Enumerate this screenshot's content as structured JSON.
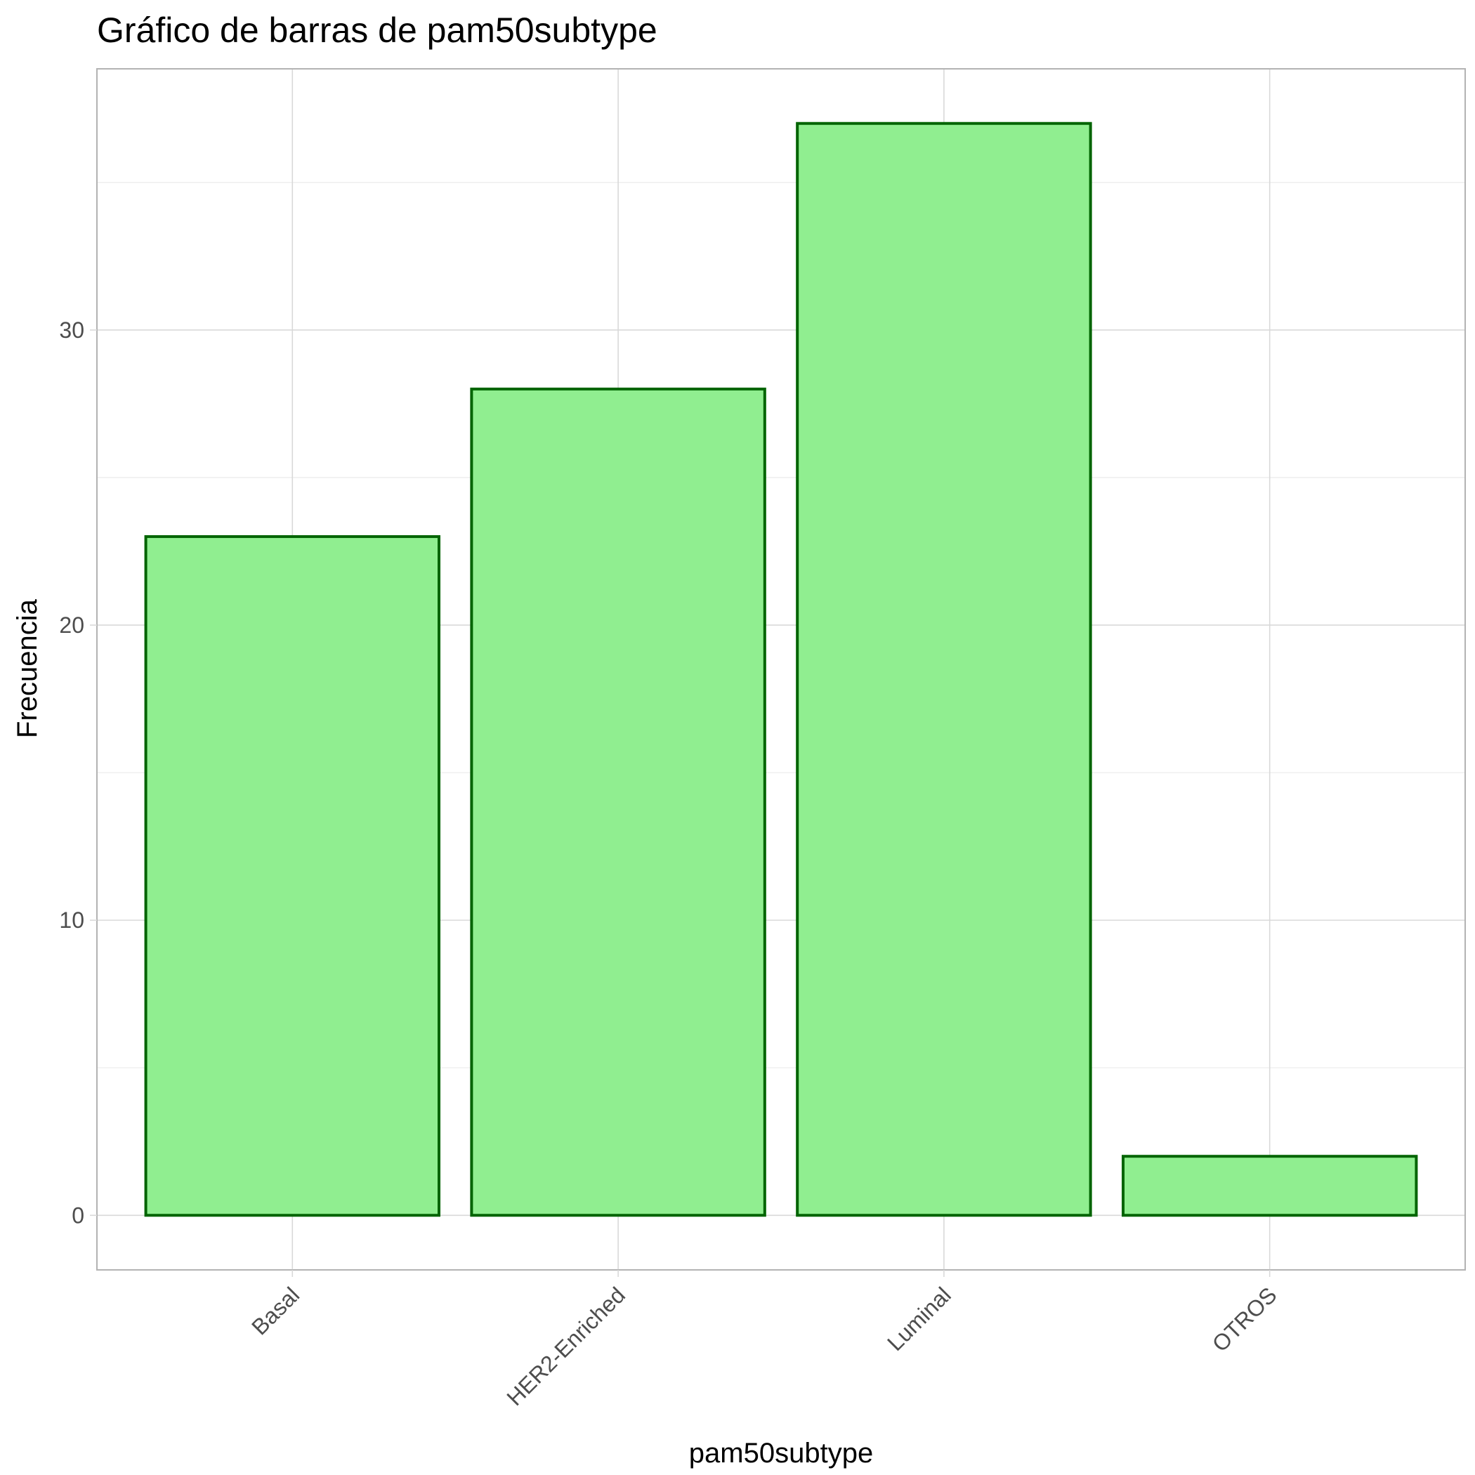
{
  "chart_data": {
    "type": "bar",
    "title": "Gráfico de barras de pam50subtype",
    "xlabel": "pam50subtype",
    "ylabel": "Frecuencia",
    "categories": [
      "Basal",
      "HER2-Enriched",
      "Luminal",
      "OTROS"
    ],
    "values": [
      23,
      28,
      37,
      2
    ],
    "ylim": [
      -1.85,
      38.85
    ],
    "yticks": [
      0,
      10,
      20,
      30
    ],
    "ytick_labels": [
      "0",
      "10",
      "20",
      "30"
    ],
    "grid": true,
    "legend": "none",
    "colors": {
      "bar_fill": "#90EE90",
      "bar_stroke": "#006400",
      "grid_major": "#D9D9D9",
      "grid_minor": "#EBEBEB",
      "panel_border": "#B3B3B3",
      "tick_text": "#4D4D4D"
    }
  }
}
